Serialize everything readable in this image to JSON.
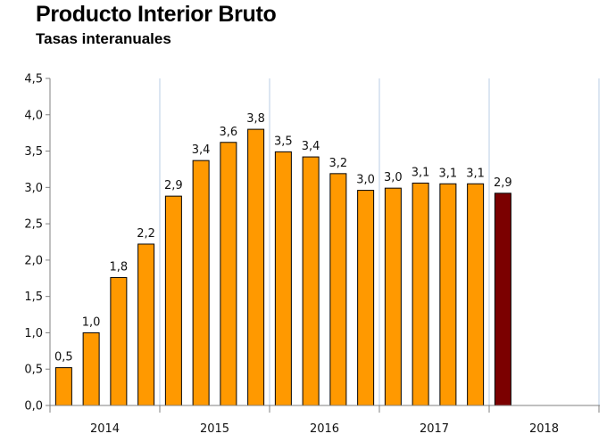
{
  "chart_data": {
    "type": "bar",
    "title": "Producto Interior Bruto",
    "subtitle": "Tasas interanuales",
    "ylim": [
      0,
      4.5
    ],
    "yticks": [
      "0,0",
      "0,5",
      "1,0",
      "1,5",
      "2,0",
      "2,5",
      "3,0",
      "3,5",
      "4,0",
      "4,5"
    ],
    "years": [
      "2014",
      "2015",
      "2016",
      "2017",
      "2018"
    ],
    "values": [
      0.52,
      1.0,
      1.76,
      2.22,
      2.88,
      3.37,
      3.62,
      3.8,
      3.49,
      3.42,
      3.19,
      2.96,
      2.99,
      3.06,
      3.05,
      3.05,
      2.92
    ],
    "data_labels": [
      "0,5",
      "1,0",
      "1,8",
      "2,2",
      "2,9",
      "3,4",
      "3,6",
      "3,8",
      "3,5",
      "3,4",
      "3,2",
      "3,0",
      "3,0",
      "3,1",
      "3,1",
      "3,1",
      "2,9"
    ],
    "bar_colors": {
      "normal": "#FF9900",
      "highlight": "#7B0000"
    },
    "highlight_index": 16,
    "grid": "vertical separators between years"
  }
}
